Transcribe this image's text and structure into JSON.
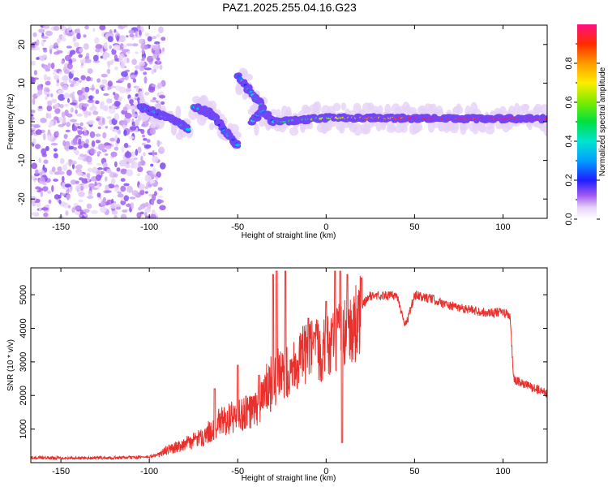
{
  "title": "PAZ1.2025.255.04.16.G23",
  "chart_data": [
    {
      "type": "heatmap",
      "id": "spectrogram",
      "xlabel": "Height of straight line (km)",
      "ylabel": "Frequency (Hz)",
      "xlim": [
        -167,
        125
      ],
      "ylim": [
        -25,
        25
      ],
      "xticks": [
        -150,
        -100,
        -50,
        0,
        50,
        100
      ],
      "yticks": [
        -20,
        -10,
        0,
        10,
        20
      ],
      "colorbar": {
        "label": "Normalized spectral amplitude",
        "range": [
          0,
          1
        ],
        "ticks": [
          "0.0",
          "0.2",
          "0.4",
          "0.6",
          "0.8"
        ]
      },
      "features": {
        "noise_region_km": [
          -167,
          -92
        ],
        "ridges": [
          {
            "x": [
              -105,
              -95,
              -85,
              -78
            ],
            "y": [
              4,
              2,
              0,
              -2
            ]
          },
          {
            "x": [
              -75,
              -65,
              -58,
              -50
            ],
            "y": [
              4,
              2,
              -2,
              -6
            ]
          },
          {
            "x": [
              -50,
              -43,
              -36
            ],
            "y": [
              12,
              8,
              4
            ]
          },
          {
            "x": [
              -42,
              -36,
              -30
            ],
            "y": [
              0,
              3,
              0
            ]
          },
          {
            "x": [
              -28,
              0,
              30,
              60,
              90,
              125
            ],
            "y": [
              0,
              1,
              1,
              0.8,
              0.8,
              0.8
            ]
          }
        ]
      }
    },
    {
      "type": "line",
      "id": "snr",
      "xlabel": "Height of straight line (km)",
      "ylabel": "SNR (10 * v/v)",
      "xlim": [
        -167,
        125
      ],
      "ylim": [
        0,
        5800
      ],
      "xticks": [
        -150,
        -100,
        -50,
        0,
        50,
        100
      ],
      "yticks": [
        1000,
        2000,
        3000,
        4000,
        5000
      ],
      "line_color": "#e8302c",
      "envelope": {
        "x": [
          -167,
          -120,
          -100,
          -95,
          -90,
          -80,
          -70,
          -60,
          -50,
          -40,
          -35,
          -30,
          -25,
          -20,
          -10,
          0,
          5,
          10,
          15,
          20,
          25,
          30,
          40,
          45,
          50,
          60,
          70,
          80,
          90,
          100,
          104,
          106,
          110,
          120,
          125
        ],
        "y": [
          150,
          150,
          180,
          250,
          400,
          600,
          800,
          1300,
          1500,
          1700,
          2200,
          2600,
          2700,
          3000,
          3500,
          3600,
          3800,
          4000,
          4200,
          4700,
          5000,
          5000,
          5000,
          4100,
          5000,
          4900,
          4700,
          4600,
          4500,
          4500,
          4400,
          2500,
          2400,
          2200,
          2100
        ]
      },
      "spikes": [
        {
          "x": -63,
          "y": 2200
        },
        {
          "x": -50,
          "y": 2900
        },
        {
          "x": -38,
          "y": 2600
        },
        {
          "x": -30,
          "y": 5600
        },
        {
          "x": -28,
          "y": 5700
        },
        {
          "x": -23,
          "y": 5700
        },
        {
          "x": -10,
          "y": 4300
        },
        {
          "x": 0,
          "y": 4800
        },
        {
          "x": 5,
          "y": 5700
        },
        {
          "x": 8,
          "y": 5700
        },
        {
          "x": 9,
          "y": 600
        },
        {
          "x": 12,
          "y": 5600
        },
        {
          "x": 20,
          "y": 5500
        }
      ]
    }
  ]
}
